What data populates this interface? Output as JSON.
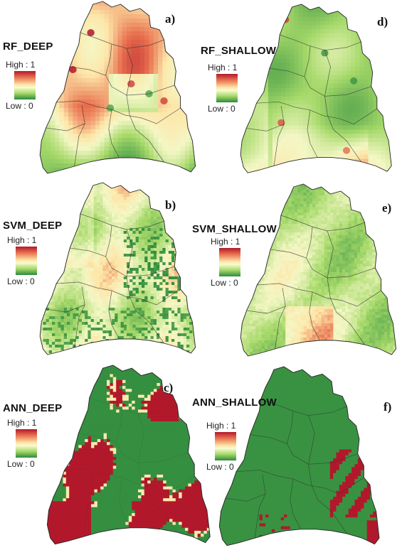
{
  "panels": [
    {
      "id": "rf_deep",
      "title": "RF_DEEP",
      "letter": "a)",
      "style": "smooth-warm"
    },
    {
      "id": "svm_deep",
      "title": "SVM_DEEP",
      "letter": "b)",
      "style": "pixel-mixed"
    },
    {
      "id": "ann_deep",
      "title": "ANN_DEEP",
      "letter": "c)",
      "style": "binary-high"
    },
    {
      "id": "rf_shallow",
      "title": "RF_SHALLOW",
      "letter": "d)",
      "style": "smooth-green"
    },
    {
      "id": "svm_shallow",
      "title": "SVM_SHALLOW",
      "letter": "e)",
      "style": "pixel-light"
    },
    {
      "id": "ann_shallow",
      "title": "ANN_SHALLOW",
      "letter": "f)",
      "style": "binary-low"
    }
  ],
  "legend": {
    "high_label": "High : 1",
    "low_label": "Low : 0",
    "colors": {
      "high": "#b2182b",
      "mid_high": "#e9714f",
      "mid": "#fde6a8",
      "mid_low": "#a6d96a",
      "low": "#2d8a3e"
    }
  }
}
